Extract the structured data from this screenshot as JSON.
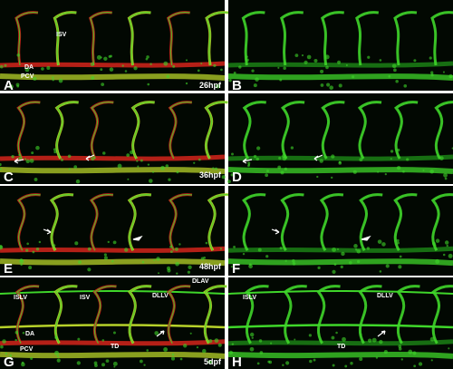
{
  "panels": [
    {
      "letter": "A",
      "stage": "26hpf",
      "labels": [
        "ISV",
        "DA",
        "PCV"
      ]
    },
    {
      "letter": "B"
    },
    {
      "letter": "C",
      "stage": "36hpf"
    },
    {
      "letter": "D"
    },
    {
      "letter": "E",
      "stage": "48hpf"
    },
    {
      "letter": "F"
    },
    {
      "letter": "G",
      "stage": "5dpf",
      "labels": [
        "ISLV",
        "ISV",
        "DLLV",
        "DLAV",
        "DA",
        "PCV",
        "TD"
      ]
    },
    {
      "letter": "H",
      "labels": [
        "ISLV",
        "DLLV",
        "TD"
      ]
    }
  ]
}
